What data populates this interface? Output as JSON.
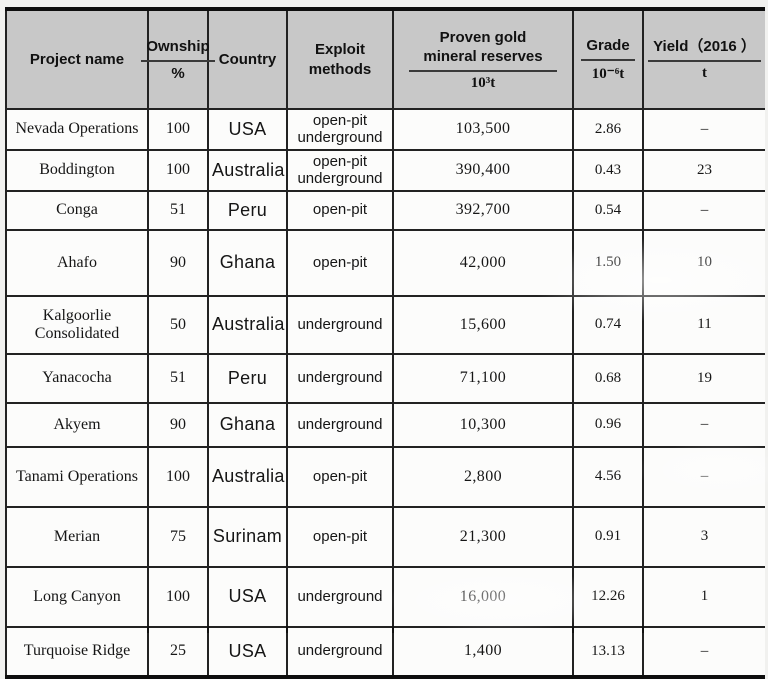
{
  "table": {
    "header": {
      "project": {
        "label": "Project name"
      },
      "ownership": {
        "label": "Ownship",
        "unit": "%"
      },
      "country": {
        "label": "Country"
      },
      "exploit": {
        "label": "Exploit\nmethods"
      },
      "reserves": {
        "label": "Proven gold\nmineral reserves",
        "unit": "10³t"
      },
      "grade": {
        "label": "Grade",
        "unit": "10⁻⁶t"
      },
      "yield": {
        "label": "Yield（2016 ）",
        "unit": "t"
      }
    },
    "rows": [
      {
        "project": "Nevada Operations",
        "ownership": "100",
        "country": "USA",
        "exploit": "open-pit\nunderground",
        "reserves": "103,500",
        "grade": "2.86",
        "yield": "–"
      },
      {
        "project": "Boddington",
        "ownership": "100",
        "country": "Australia",
        "exploit": "open-pit\nunderground",
        "reserves": "390,400",
        "grade": "0.43",
        "yield": "23"
      },
      {
        "project": "Conga",
        "ownership": "51",
        "country": "Peru",
        "exploit": "open-pit",
        "reserves": "392,700",
        "grade": "0.54",
        "yield": "–"
      },
      {
        "project": "Ahafo",
        "ownership": "90",
        "country": "Ghana",
        "exploit": "open-pit",
        "reserves": "42,000",
        "grade": "1.50",
        "yield": "10"
      },
      {
        "project": "Kalgoorlie\nConsolidated",
        "ownership": "50",
        "country": "Australia",
        "exploit": "underground",
        "reserves": "15,600",
        "grade": "0.74",
        "yield": "11"
      },
      {
        "project": "Yanacocha",
        "ownership": "51",
        "country": "Peru",
        "exploit": "underground",
        "reserves": "71,100",
        "grade": "0.68",
        "yield": "19"
      },
      {
        "project": "Akyem",
        "ownership": "90",
        "country": "Ghana",
        "exploit": "underground",
        "reserves": "10,300",
        "grade": "0.96",
        "yield": "–"
      },
      {
        "project": "Tanami Operations",
        "ownership": "100",
        "country": "Australia",
        "exploit": "open-pit",
        "reserves": "2,800",
        "grade": "4.56",
        "yield": "–"
      },
      {
        "project": "Merian",
        "ownership": "75",
        "country": "Surinam",
        "exploit": "open-pit",
        "reserves": "21,300",
        "grade": "0.91",
        "yield": "3"
      },
      {
        "project": "Long Canyon",
        "ownership": "100",
        "country": "USA",
        "exploit": "underground",
        "reserves": "16,000",
        "grade": "12.26",
        "yield": "1"
      },
      {
        "project": "Turquoise Ridge",
        "ownership": "25",
        "country": "USA",
        "exploit": "underground",
        "reserves": "1,400",
        "grade": "13.13",
        "yield": "–"
      }
    ],
    "colors": {
      "header_bg": "#c8c8c8",
      "border": "#222222",
      "thick_border": "#0e0e0e",
      "body_bg": "#fcfcfb",
      "text": "#161616"
    }
  }
}
